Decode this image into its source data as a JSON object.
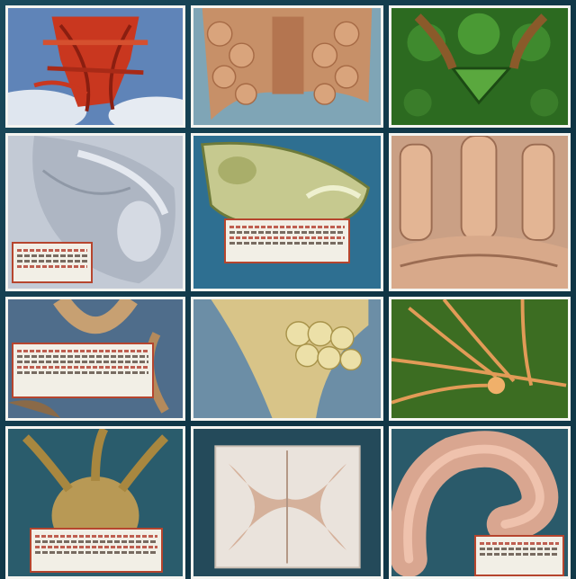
{
  "collage": {
    "columns": 3,
    "rows": 4,
    "tiles": [
      {
        "subject": "red-vessels-on-sky",
        "palette": [
          "#5b7fb1",
          "#c33a22"
        ]
      },
      {
        "subject": "beige-lobed-tissue",
        "palette": [
          "#7aa3b4",
          "#c9916a"
        ]
      },
      {
        "subject": "green-leaf-structure",
        "palette": [
          "#2d6a22",
          "#8b5a2a"
        ]
      },
      {
        "subject": "grey-face-like-organ",
        "palette": [
          "#b5bdc9",
          "#e1e6ee"
        ],
        "has_label": true
      },
      {
        "subject": "green-yellow-shell",
        "palette": [
          "#2f6f90",
          "#c5c78f"
        ],
        "has_label": true
      },
      {
        "subject": "pink-muscle-columns",
        "palette": [
          "#c99a7e",
          "#efcfb1"
        ]
      },
      {
        "subject": "tan-branching-root",
        "palette": [
          "#4e6b8a",
          "#c8a173"
        ],
        "has_label": true
      },
      {
        "subject": "yellow-lobed-gland",
        "palette": [
          "#6c8ea6",
          "#e0cd8a"
        ]
      },
      {
        "subject": "orange-nerve-fibers",
        "palette": [
          "#3b6b22",
          "#e09a55"
        ]
      },
      {
        "subject": "olive-tentacle-mass",
        "palette": [
          "#2a5a6a",
          "#b99a55"
        ],
        "has_label": true
      },
      {
        "subject": "butterfly-tissue-section",
        "palette": [
          "#244a5a",
          "#d8b9a6"
        ]
      },
      {
        "subject": "coiled-intestine",
        "palette": [
          "#2a5a6a",
          "#d9a690"
        ],
        "has_label": true
      }
    ]
  }
}
